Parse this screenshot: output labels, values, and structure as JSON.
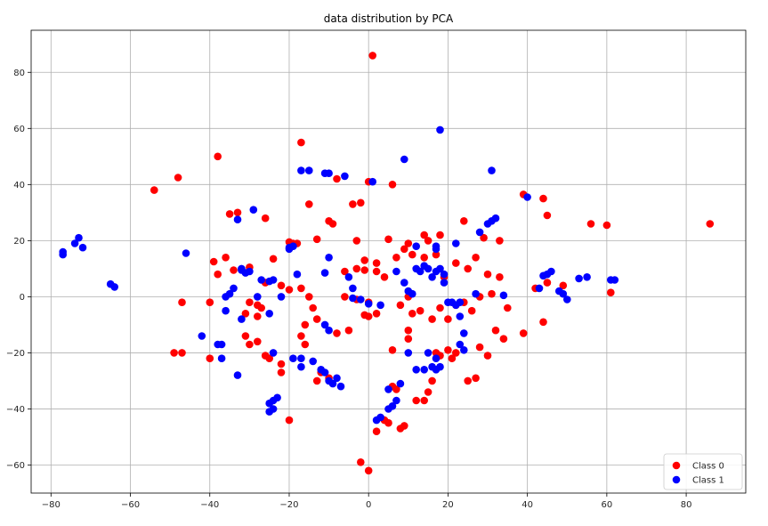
{
  "chart_data": {
    "type": "scatter",
    "title": "data distribution by PCA",
    "xlabel": "",
    "ylabel": "",
    "xlim": [
      -85,
      95
    ],
    "ylim": [
      -70,
      95
    ],
    "xticks": [
      -80,
      -60,
      -40,
      -20,
      0,
      20,
      40,
      60,
      80
    ],
    "yticks": [
      -60,
      -40,
      -20,
      0,
      20,
      40,
      60,
      80
    ],
    "grid": true,
    "legend_position": "lower-right",
    "series": [
      {
        "name": "Class 0",
        "color": "#ff0000",
        "points": [
          [
            1,
            86
          ],
          [
            -17,
            55
          ],
          [
            -38,
            50
          ],
          [
            -48,
            42.5
          ],
          [
            -54,
            38
          ],
          [
            -8,
            42
          ],
          [
            6,
            40
          ],
          [
            0,
            41
          ],
          [
            -4,
            33
          ],
          [
            -2,
            33.5
          ],
          [
            -15,
            33
          ],
          [
            -33,
            30
          ],
          [
            -35,
            29.5
          ],
          [
            -26,
            28
          ],
          [
            -10,
            27
          ],
          [
            -9,
            26
          ],
          [
            -19,
            19
          ],
          [
            -20,
            19.5
          ],
          [
            -18,
            19
          ],
          [
            -13,
            20.5
          ],
          [
            -3,
            20
          ],
          [
            5,
            20.5
          ],
          [
            14,
            22
          ],
          [
            15,
            20
          ],
          [
            18,
            22
          ],
          [
            24,
            27
          ],
          [
            29,
            21
          ],
          [
            33,
            20
          ],
          [
            39,
            36.5
          ],
          [
            44,
            35
          ],
          [
            45,
            29
          ],
          [
            56,
            26
          ],
          [
            60,
            25.5
          ],
          [
            86,
            26
          ],
          [
            -36,
            14
          ],
          [
            -39,
            12.5
          ],
          [
            -24,
            13.5
          ],
          [
            -30,
            10.5
          ],
          [
            -34,
            9.5
          ],
          [
            -38,
            8
          ],
          [
            -26,
            5
          ],
          [
            -22,
            4
          ],
          [
            -17,
            3
          ],
          [
            -20,
            2.5
          ],
          [
            -15,
            0
          ],
          [
            -6,
            9
          ],
          [
            -3,
            10
          ],
          [
            -1,
            9.5
          ],
          [
            -1,
            13
          ],
          [
            2,
            12
          ],
          [
            2,
            9
          ],
          [
            4,
            7
          ],
          [
            7,
            14
          ],
          [
            9,
            17
          ],
          [
            10,
            19
          ],
          [
            11,
            15
          ],
          [
            14,
            14
          ],
          [
            17,
            15
          ],
          [
            22,
            12
          ],
          [
            19,
            7
          ],
          [
            25,
            10
          ],
          [
            27,
            14
          ],
          [
            30,
            8
          ],
          [
            33,
            7
          ],
          [
            42,
            3
          ],
          [
            45,
            5
          ],
          [
            49,
            4
          ],
          [
            61,
            1.5
          ],
          [
            -47,
            -2
          ],
          [
            -40,
            -2
          ],
          [
            -30,
            -2
          ],
          [
            -28,
            -3
          ],
          [
            -27,
            -4
          ],
          [
            -31,
            -6
          ],
          [
            -28,
            -7
          ],
          [
            -14,
            -4
          ],
          [
            -13,
            -8
          ],
          [
            -16,
            -10
          ],
          [
            -8,
            -13
          ],
          [
            -5,
            -12
          ],
          [
            -6,
            0
          ],
          [
            -3,
            -1
          ],
          [
            0,
            -2
          ],
          [
            0,
            -7
          ],
          [
            -1,
            -6.5
          ],
          [
            2,
            -6
          ],
          [
            8,
            -3
          ],
          [
            10,
            0
          ],
          [
            11,
            -6
          ],
          [
            13,
            -5
          ],
          [
            16,
            -8
          ],
          [
            18,
            -4
          ],
          [
            20,
            -8
          ],
          [
            22,
            -3
          ],
          [
            24,
            -2
          ],
          [
            26,
            -5
          ],
          [
            28,
            0
          ],
          [
            31,
            1
          ],
          [
            35,
            -4
          ],
          [
            32,
            -12
          ],
          [
            34,
            -15
          ],
          [
            39,
            -13
          ],
          [
            44,
            -9
          ],
          [
            -49,
            -20
          ],
          [
            -47,
            -20
          ],
          [
            -40,
            -22
          ],
          [
            -31,
            -14
          ],
          [
            -30,
            -17
          ],
          [
            -28,
            -16
          ],
          [
            -26,
            -21
          ],
          [
            -25,
            -22
          ],
          [
            -22,
            -24
          ],
          [
            -17,
            -14
          ],
          [
            -16,
            -17
          ],
          [
            -12,
            -27
          ],
          [
            -13,
            -30
          ],
          [
            -10,
            -29
          ],
          [
            -20,
            -44
          ],
          [
            -22,
            -27
          ],
          [
            6,
            -19
          ],
          [
            10,
            -12
          ],
          [
            10,
            -15
          ],
          [
            17,
            -20
          ],
          [
            16,
            -30
          ],
          [
            15,
            -34
          ],
          [
            20,
            -19
          ],
          [
            21,
            -22
          ],
          [
            22,
            -20
          ],
          [
            28,
            -18
          ],
          [
            30,
            -21
          ],
          [
            27,
            -29
          ],
          [
            25,
            -30
          ],
          [
            18,
            -21
          ],
          [
            12,
            -37
          ],
          [
            14,
            -37
          ],
          [
            6,
            -32
          ],
          [
            7,
            -33
          ],
          [
            5,
            -45
          ],
          [
            8,
            -47
          ],
          [
            9,
            -46
          ],
          [
            2,
            -48
          ],
          [
            4,
            -44
          ],
          [
            -2,
            -59
          ],
          [
            0,
            -62
          ]
        ]
      },
      {
        "name": "Class 1",
        "color": "#0000ff",
        "points": [
          [
            18,
            59.5
          ],
          [
            9,
            49
          ],
          [
            31,
            45
          ],
          [
            -17,
            45
          ],
          [
            -15,
            45
          ],
          [
            -11,
            44
          ],
          [
            -10,
            44
          ],
          [
            -6,
            43
          ],
          [
            1,
            41
          ],
          [
            40,
            35.5
          ],
          [
            -33,
            27.5
          ],
          [
            -29,
            31
          ],
          [
            -20,
            17
          ],
          [
            -20,
            17.5
          ],
          [
            -19,
            18
          ],
          [
            12,
            18
          ],
          [
            17,
            18
          ],
          [
            17,
            17
          ],
          [
            22,
            19
          ],
          [
            28,
            23
          ],
          [
            30,
            26
          ],
          [
            31,
            27
          ],
          [
            32,
            28
          ],
          [
            -77,
            15
          ],
          [
            -77,
            16
          ],
          [
            -74,
            19
          ],
          [
            -73,
            21
          ],
          [
            -72,
            17.5
          ],
          [
            -65,
            4.5
          ],
          [
            -64,
            3.5
          ],
          [
            -46,
            15.5
          ],
          [
            -36,
            0
          ],
          [
            -35,
            1
          ],
          [
            -34,
            3
          ],
          [
            -32,
            10
          ],
          [
            -32,
            9.5
          ],
          [
            -31,
            8.5
          ],
          [
            -30,
            9
          ],
          [
            -28,
            0
          ],
          [
            -27,
            6
          ],
          [
            -25,
            5.5
          ],
          [
            -24,
            6
          ],
          [
            -22,
            0
          ],
          [
            -18,
            8
          ],
          [
            -11,
            8.5
          ],
          [
            -10,
            14
          ],
          [
            -5,
            7
          ],
          [
            -4,
            3
          ],
          [
            -4,
            -0.5
          ],
          [
            -2,
            -1
          ],
          [
            0,
            -2.5
          ],
          [
            3,
            -3
          ],
          [
            7,
            9
          ],
          [
            9,
            5
          ],
          [
            10,
            2
          ],
          [
            11,
            1
          ],
          [
            12,
            10
          ],
          [
            13,
            9
          ],
          [
            14,
            11
          ],
          [
            15,
            10
          ],
          [
            16,
            7
          ],
          [
            17,
            9
          ],
          [
            18,
            10
          ],
          [
            19,
            8
          ],
          [
            19,
            5
          ],
          [
            21,
            -2
          ],
          [
            22,
            -3
          ],
          [
            23,
            -7
          ],
          [
            27,
            1
          ],
          [
            34,
            0.5
          ],
          [
            43,
            3
          ],
          [
            44,
            7.5
          ],
          [
            45,
            8
          ],
          [
            46,
            9
          ],
          [
            48,
            2
          ],
          [
            49,
            1
          ],
          [
            50,
            -1
          ],
          [
            53,
            6.5
          ],
          [
            55,
            7
          ],
          [
            61,
            6
          ],
          [
            62,
            6
          ],
          [
            -42,
            -14
          ],
          [
            -38,
            -17
          ],
          [
            -37,
            -17
          ],
          [
            -37,
            -22
          ],
          [
            -36,
            -5
          ],
          [
            -33,
            -28
          ],
          [
            -32,
            -8
          ],
          [
            -25,
            -6
          ],
          [
            -19,
            -22
          ],
          [
            -17,
            -22
          ],
          [
            -17,
            -25
          ],
          [
            -14,
            -23
          ],
          [
            -12,
            -26
          ],
          [
            -11,
            -27
          ],
          [
            -10,
            -30
          ],
          [
            -9,
            -31
          ],
          [
            -7,
            -32
          ],
          [
            -8,
            -29
          ],
          [
            -10,
            -12
          ],
          [
            -11,
            -10
          ],
          [
            10,
            -20
          ],
          [
            12,
            -26
          ],
          [
            14,
            -26
          ],
          [
            15,
            -20
          ],
          [
            16,
            -25
          ],
          [
            17,
            -26
          ],
          [
            18,
            -25
          ],
          [
            17,
            -22
          ],
          [
            20,
            -2
          ],
          [
            23,
            -17
          ],
          [
            24,
            -19
          ],
          [
            24,
            -13
          ],
          [
            23,
            -2
          ],
          [
            -24,
            -20
          ],
          [
            -25,
            -38
          ],
          [
            -24,
            -40
          ],
          [
            -24,
            -37
          ],
          [
            -23,
            -36
          ],
          [
            -25,
            -41
          ],
          [
            2,
            -44
          ],
          [
            3,
            -43
          ],
          [
            5,
            -40
          ],
          [
            6,
            -39
          ],
          [
            7,
            -37
          ],
          [
            5,
            -33
          ],
          [
            8,
            -31
          ]
        ]
      }
    ]
  }
}
